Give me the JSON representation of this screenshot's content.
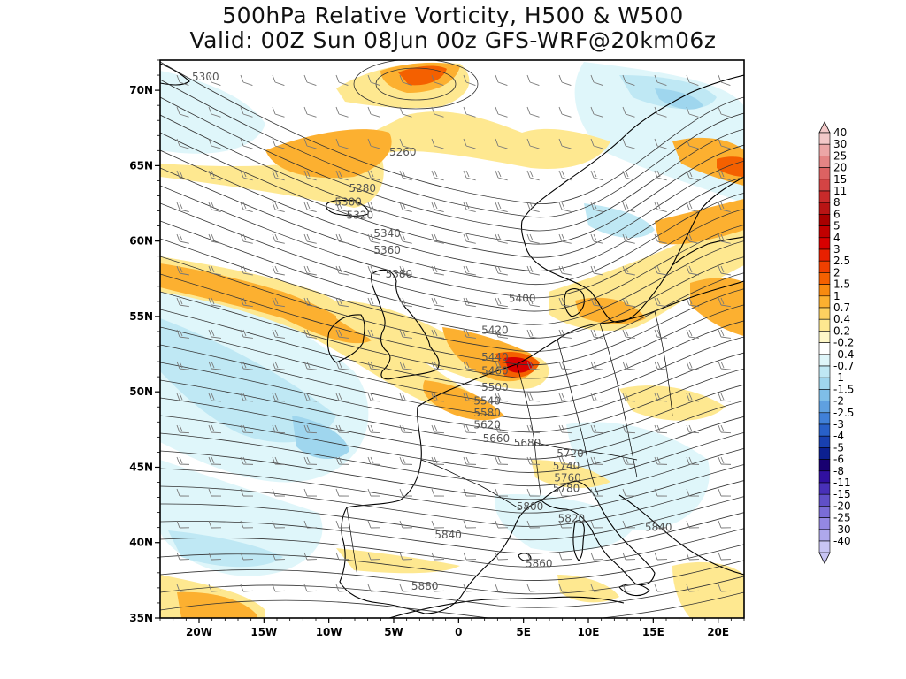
{
  "title": {
    "line1": "500hPa Relative Vorticity, H500 & W500",
    "line2": "Valid: 00Z Sun 08Jun 00z GFS-WRF@20km06z"
  },
  "map": {
    "lon_range": [
      -23,
      22
    ],
    "lat_range": [
      35,
      72
    ],
    "lon_ticks": [
      {
        "value": -20,
        "label": "20W"
      },
      {
        "value": -15,
        "label": "15W"
      },
      {
        "value": -10,
        "label": "10W"
      },
      {
        "value": -5,
        "label": "5W"
      },
      {
        "value": 0,
        "label": "0"
      },
      {
        "value": 5,
        "label": "5E"
      },
      {
        "value": 10,
        "label": "10E"
      },
      {
        "value": 15,
        "label": "15E"
      },
      {
        "value": 20,
        "label": "20E"
      }
    ],
    "lat_ticks": [
      {
        "value": 70,
        "label": "70N"
      },
      {
        "value": 65,
        "label": "65N"
      },
      {
        "value": 60,
        "label": "60N"
      },
      {
        "value": 55,
        "label": "55N"
      },
      {
        "value": 50,
        "label": "50N"
      },
      {
        "value": 45,
        "label": "45N"
      },
      {
        "value": 40,
        "label": "40N"
      },
      {
        "value": 35,
        "label": "35N"
      }
    ],
    "contour_labels": [
      {
        "text": "5300",
        "lon": -19.5,
        "lat": 70.9
      },
      {
        "text": "5260",
        "lon": -4.3,
        "lat": 65.9
      },
      {
        "text": "5280",
        "lon": -7.4,
        "lat": 63.5
      },
      {
        "text": "5300",
        "lon": -8.5,
        "lat": 62.6
      },
      {
        "text": "5320",
        "lon": -7.6,
        "lat": 61.7
      },
      {
        "text": "5340",
        "lon": -5.5,
        "lat": 60.5
      },
      {
        "text": "5360",
        "lon": -5.5,
        "lat": 59.4
      },
      {
        "text": "5380",
        "lon": -4.6,
        "lat": 57.8
      },
      {
        "text": "5400",
        "lon": 4.9,
        "lat": 56.2
      },
      {
        "text": "5420",
        "lon": 2.8,
        "lat": 54.1
      },
      {
        "text": "5440",
        "lon": 2.8,
        "lat": 52.3
      },
      {
        "text": "5460",
        "lon": 2.8,
        "lat": 51.4
      },
      {
        "text": "5500",
        "lon": 2.8,
        "lat": 50.3
      },
      {
        "text": "5540",
        "lon": 2.2,
        "lat": 49.4
      },
      {
        "text": "5580",
        "lon": 2.2,
        "lat": 48.6
      },
      {
        "text": "5620",
        "lon": 2.2,
        "lat": 47.8
      },
      {
        "text": "5660",
        "lon": 2.9,
        "lat": 46.9
      },
      {
        "text": "5680",
        "lon": 5.3,
        "lat": 46.6
      },
      {
        "text": "5720",
        "lon": 8.6,
        "lat": 45.9
      },
      {
        "text": "5740",
        "lon": 8.3,
        "lat": 45.1
      },
      {
        "text": "5760",
        "lon": 8.4,
        "lat": 44.3
      },
      {
        "text": "5780",
        "lon": 8.3,
        "lat": 43.6
      },
      {
        "text": "5800",
        "lon": 5.5,
        "lat": 42.4
      },
      {
        "text": "5820",
        "lon": 8.7,
        "lat": 41.6
      },
      {
        "text": "5840",
        "lon": -0.8,
        "lat": 40.5
      },
      {
        "text": "5840",
        "lon": 15.4,
        "lat": 41.0
      },
      {
        "text": "5860",
        "lon": 6.2,
        "lat": 38.6
      },
      {
        "text": "5880",
        "lon": -2.6,
        "lat": 37.1
      }
    ]
  },
  "colorbar": {
    "labels": [
      "40",
      "30",
      "25",
      "20",
      "15",
      "11",
      "8",
      "6",
      "5",
      "4",
      "3",
      "2.5",
      "2",
      "1.5",
      "1",
      "0.7",
      "0.4",
      "0.2",
      "-0.2",
      "-0.4",
      "-0.7",
      "-1",
      "-1.5",
      "-2",
      "-2.5",
      "-3",
      "-4",
      "-5",
      "-6",
      "-8",
      "-11",
      "-15",
      "-20",
      "-25",
      "-30",
      "-40"
    ],
    "colors": [
      "#f3c8c8",
      "#eca6a6",
      "#e48484",
      "#dc6262",
      "#d44444",
      "#c82a2a",
      "#b81414",
      "#a80000",
      "#c00000",
      "#d80000",
      "#e82000",
      "#f04000",
      "#f46000",
      "#f88a10",
      "#fcb030",
      "#fdd060",
      "#fee890",
      "#fff8c8",
      "#ffffff",
      "#dff6fa",
      "#bfe8f4",
      "#9fd6ee",
      "#7fbee8",
      "#5fa0e0",
      "#4080d8",
      "#2860c8",
      "#1840b0",
      "#0c2090",
      "#180070",
      "#3010a0",
      "#4830b8",
      "#6050c8",
      "#7a6cd6",
      "#9488e2",
      "#aea8ec",
      "#c8c4f4"
    ]
  },
  "colors": {
    "frame": "#000000",
    "coast": "#000000",
    "contour": "#333333",
    "contour_label": "#555555",
    "wind_barb": "#777777"
  }
}
